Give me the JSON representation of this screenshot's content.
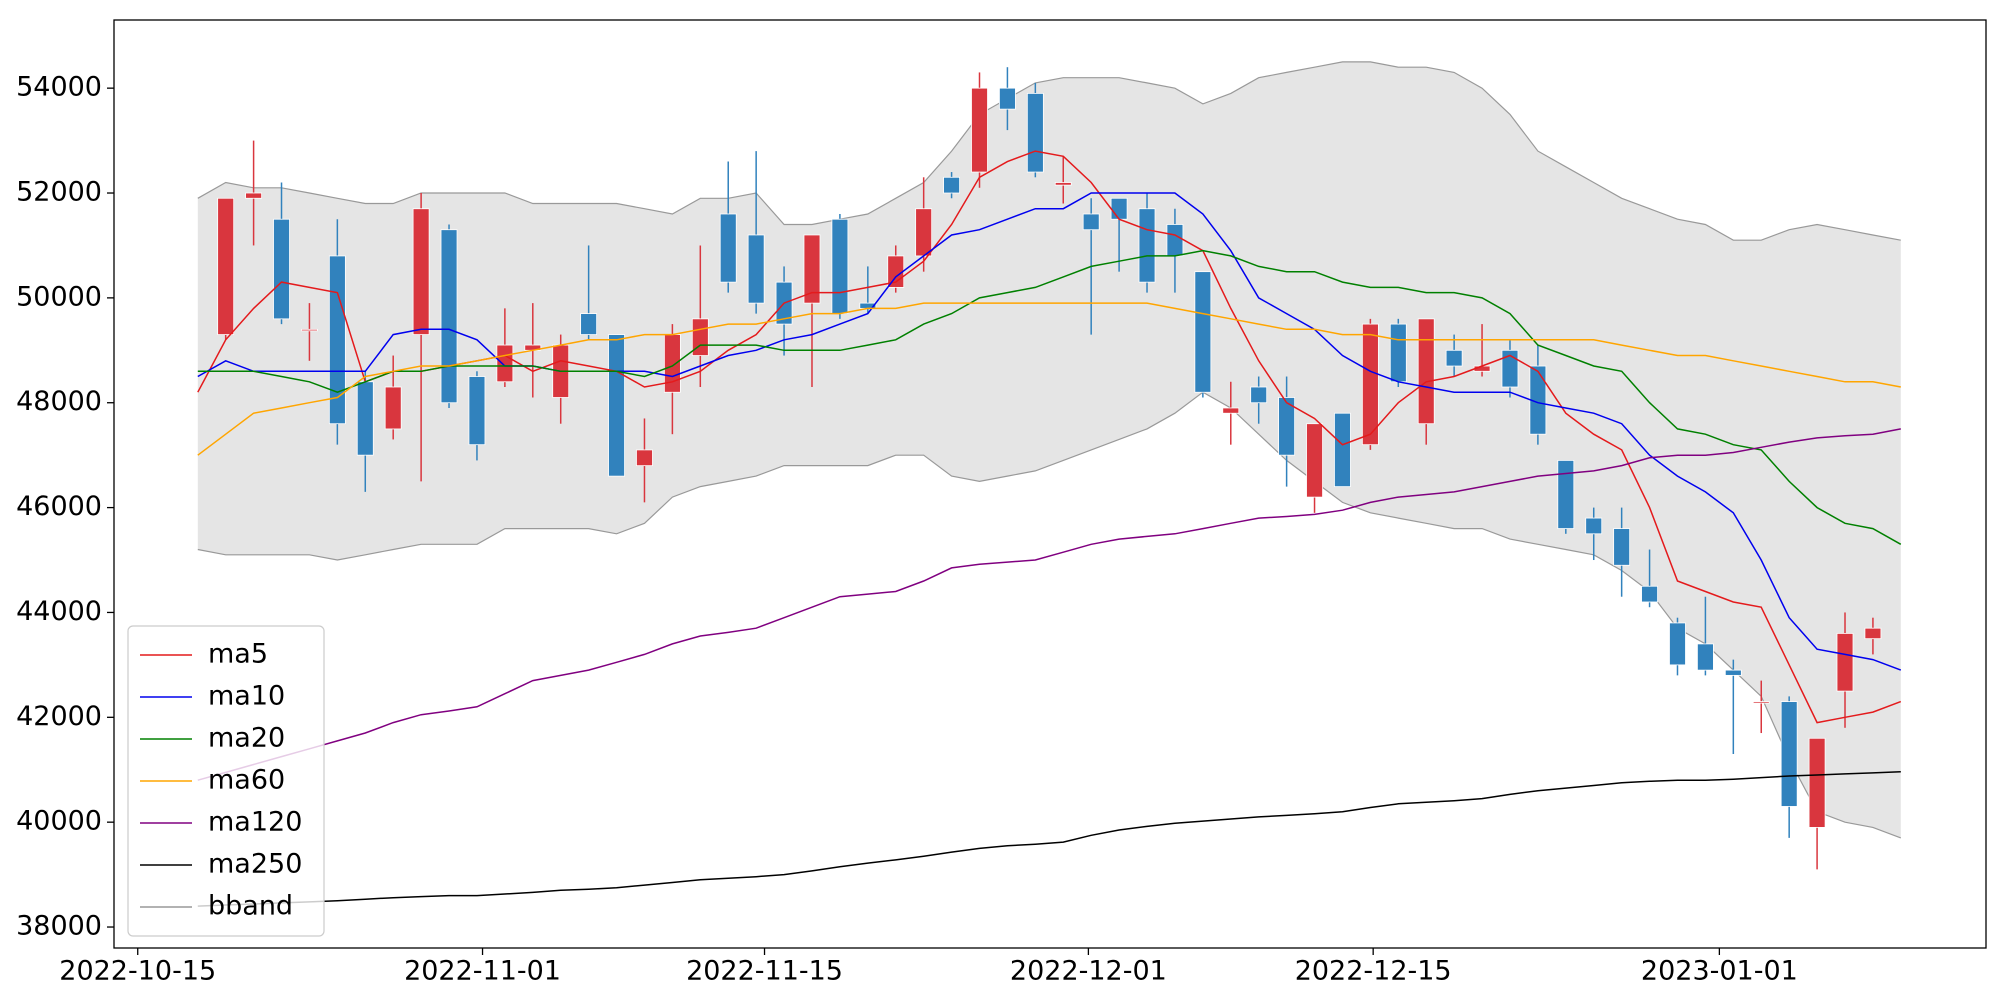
{
  "chart_data": {
    "type": "candlestick",
    "xlim": [
      -3,
      64.05
    ],
    "xticks": [
      {
        "value": -2.15,
        "label": "2022-10-15"
      },
      {
        "value": 10.2,
        "label": "2022-11-01"
      },
      {
        "value": 20.3,
        "label": "2022-11-15"
      },
      {
        "value": 31.9,
        "label": "2022-12-01"
      },
      {
        "value": 42.1,
        "label": "2022-12-15"
      },
      {
        "value": 54.5,
        "label": "2023-01-01"
      }
    ],
    "ylim": [
      37600,
      55300
    ],
    "yticks": [
      38000,
      40000,
      42000,
      44000,
      46000,
      48000,
      50000,
      52000,
      54000
    ],
    "legend": "lower left",
    "up_color": "#d9363e",
    "down_color": "#3182bd",
    "ohlc": {
      "open": [
        null,
        49300,
        51900,
        51500,
        49400,
        50800,
        48400,
        47500,
        49300,
        51300,
        48500,
        48400,
        49000,
        48100,
        49700,
        49300,
        46800,
        48200,
        48900,
        51600,
        51200,
        50300,
        49900,
        51500,
        49900,
        50200,
        50800,
        52300,
        52400,
        54000,
        53900,
        52150,
        51600,
        51900,
        51700,
        51400,
        50500,
        47800,
        48300,
        48100,
        46200,
        47800,
        47200,
        49500,
        47600,
        49000,
        48600,
        49000,
        48700,
        46900,
        45800,
        45600,
        44500,
        43800,
        43400,
        42900,
        42300,
        42300,
        39900,
        42500,
        43500,
        null
      ],
      "high": [
        null,
        51900,
        53000,
        52200,
        49900,
        51500,
        48600,
        48900,
        52000,
        51400,
        48600,
        49800,
        49900,
        49300,
        51000,
        49300,
        47700,
        49500,
        51000,
        52600,
        52800,
        50600,
        51200,
        51600,
        50600,
        51000,
        52300,
        52400,
        54300,
        54400,
        54100,
        52700,
        51900,
        51900,
        52000,
        51700,
        50500,
        48400,
        48500,
        48500,
        47600,
        47800,
        49600,
        49600,
        49600,
        49300,
        49500,
        49200,
        49100,
        46900,
        46000,
        46000,
        45200,
        43900,
        44300,
        43100,
        42700,
        42400,
        41600,
        44000,
        43900,
        null
      ],
      "low": [
        null,
        49200,
        51000,
        49500,
        48800,
        47200,
        46300,
        47300,
        46500,
        47900,
        46900,
        48300,
        48100,
        47600,
        49200,
        46600,
        46100,
        47400,
        48300,
        50100,
        49700,
        48900,
        48300,
        49600,
        49700,
        50100,
        50500,
        51900,
        52100,
        53200,
        52300,
        51800,
        49300,
        50500,
        50100,
        50100,
        48100,
        47200,
        47600,
        46400,
        45900,
        46400,
        47100,
        48300,
        47200,
        48500,
        48500,
        48100,
        47200,
        45500,
        45000,
        44300,
        44100,
        42800,
        42800,
        41300,
        41700,
        39700,
        39100,
        41800,
        43200,
        null
      ],
      "close": [
        null,
        51900,
        52000,
        49600,
        49400,
        47600,
        47000,
        48300,
        51700,
        48000,
        47200,
        49100,
        49100,
        49100,
        49300,
        46600,
        47100,
        49300,
        49600,
        50300,
        49900,
        49500,
        51200,
        49700,
        49800,
        50800,
        51700,
        52000,
        54000,
        53600,
        52400,
        52200,
        51300,
        51500,
        50300,
        50800,
        48200,
        47900,
        48000,
        47000,
        47600,
        46400,
        49500,
        48400,
        49600,
        48700,
        48700,
        48300,
        47400,
        45600,
        45500,
        44900,
        44200,
        43000,
        42900,
        42800,
        42300,
        40300,
        41600,
        43600,
        43700,
        null
      ]
    },
    "bband": {
      "name": "bband",
      "color": "#999999",
      "fill": "#e5e5e5",
      "upper": [
        51900,
        52200,
        52100,
        52100,
        52000,
        51900,
        51800,
        51800,
        52000,
        52000,
        52000,
        52000,
        51800,
        51800,
        51800,
        51800,
        51700,
        51600,
        51900,
        51900,
        52000,
        51400,
        51400,
        51500,
        51600,
        51900,
        52200,
        52800,
        53500,
        53800,
        54100,
        54200,
        54200,
        54200,
        54100,
        54000,
        53700,
        53900,
        54200,
        54300,
        54400,
        54500,
        54500,
        54400,
        54400,
        54300,
        54000,
        53500,
        52800,
        52500,
        52200,
        51900,
        51700,
        51500,
        51400,
        51100,
        51100,
        51300,
        51400,
        51300,
        51200,
        51100
      ],
      "lower": [
        45200,
        45100,
        45100,
        45100,
        45100,
        45000,
        45100,
        45200,
        45300,
        45300,
        45300,
        45600,
        45600,
        45600,
        45600,
        45500,
        45700,
        46200,
        46400,
        46500,
        46600,
        46800,
        46800,
        46800,
        46800,
        47000,
        47000,
        46600,
        46500,
        46600,
        46700,
        46900,
        47100,
        47300,
        47500,
        47800,
        48200,
        47900,
        47400,
        46900,
        46500,
        46100,
        45900,
        45800,
        45700,
        45600,
        45600,
        45400,
        45300,
        45200,
        45100,
        44800,
        44400,
        43700,
        43400,
        42900,
        42400,
        41200,
        40200,
        40000,
        39900,
        39700
      ]
    },
    "series": [
      {
        "name": "ma5",
        "color": "#e41a1c",
        "values": [
          48200,
          49200,
          49800,
          50300,
          50200,
          50100,
          48400,
          48600,
          48600,
          48700,
          48800,
          48900,
          48600,
          48800,
          48700,
          48600,
          48300,
          48400,
          48600,
          49000,
          49300,
          49900,
          50100,
          50100,
          50200,
          50300,
          50700,
          51400,
          52300,
          52600,
          52800,
          52700,
          52200,
          51500,
          51300,
          51200,
          50900,
          49800,
          48800,
          48000,
          47700,
          47200,
          47400,
          48000,
          48400,
          48500,
          48700,
          48900,
          48600,
          47800,
          47400,
          47100,
          46000,
          44600,
          44400,
          44200,
          44100,
          43000,
          41900,
          42000,
          42100,
          42300
        ]
      },
      {
        "name": "ma10",
        "color": "#0000ee",
        "values": [
          48500,
          48800,
          48600,
          48600,
          48600,
          48600,
          48600,
          49300,
          49400,
          49400,
          49200,
          48700,
          48700,
          48600,
          48600,
          48600,
          48600,
          48500,
          48700,
          48900,
          49000,
          49200,
          49300,
          49500,
          49700,
          50400,
          50800,
          51200,
          51300,
          51500,
          51700,
          51700,
          52000,
          52000,
          52000,
          52000,
          51600,
          50900,
          50000,
          49700,
          49400,
          48900,
          48600,
          48400,
          48300,
          48200,
          48200,
          48200,
          48000,
          47900,
          47800,
          47600,
          47000,
          46600,
          46300,
          45900,
          45000,
          43900,
          43300,
          43200,
          43100,
          42900
        ]
      },
      {
        "name": "ma20",
        "color": "#008000",
        "values": [
          48600,
          48600,
          48600,
          48500,
          48400,
          48200,
          48400,
          48600,
          48600,
          48700,
          48700,
          48700,
          48700,
          48600,
          48600,
          48600,
          48500,
          48700,
          49100,
          49100,
          49100,
          49000,
          49000,
          49000,
          49100,
          49200,
          49500,
          49700,
          50000,
          50100,
          50200,
          50400,
          50600,
          50700,
          50800,
          50800,
          50900,
          50800,
          50600,
          50500,
          50500,
          50300,
          50200,
          50200,
          50100,
          50100,
          50000,
          49700,
          49100,
          48900,
          48700,
          48600,
          48000,
          47500,
          47400,
          47200,
          47100,
          46500,
          46000,
          45700,
          45600,
          45300
        ]
      },
      {
        "name": "ma60",
        "color": "#ffa500",
        "values": [
          47000,
          47400,
          47800,
          47900,
          48000,
          48100,
          48500,
          48600,
          48700,
          48700,
          48800,
          48900,
          49000,
          49100,
          49200,
          49200,
          49300,
          49300,
          49400,
          49500,
          49500,
          49600,
          49700,
          49700,
          49800,
          49800,
          49900,
          49900,
          49900,
          49900,
          49900,
          49900,
          49900,
          49900,
          49900,
          49800,
          49700,
          49600,
          49500,
          49400,
          49400,
          49300,
          49300,
          49200,
          49200,
          49200,
          49200,
          49200,
          49200,
          49200,
          49200,
          49100,
          49000,
          48900,
          48900,
          48800,
          48700,
          48600,
          48500,
          48400,
          48400,
          48300
        ]
      },
      {
        "name": "ma120",
        "color": "#800080",
        "values": [
          40800,
          40950,
          41100,
          41250,
          41400,
          41550,
          41700,
          41900,
          42050,
          42120,
          42200,
          42450,
          42700,
          42800,
          42900,
          43050,
          43200,
          43400,
          43550,
          43620,
          43700,
          43900,
          44100,
          44300,
          44350,
          44400,
          44600,
          44850,
          44920,
          44960,
          45000,
          45150,
          45300,
          45400,
          45450,
          45500,
          45600,
          45700,
          45800,
          45830,
          45870,
          45950,
          46100,
          46200,
          46250,
          46300,
          46400,
          46500,
          46600,
          46650,
          46700,
          46800,
          46950,
          47000,
          47000,
          47050,
          47150,
          47250,
          47330,
          47370,
          47400,
          47500
        ]
      },
      {
        "name": "ma250",
        "color": "#000000",
        "values": [
          38400,
          38420,
          38440,
          38460,
          38480,
          38500,
          38530,
          38560,
          38580,
          38600,
          38600,
          38630,
          38660,
          38700,
          38720,
          38750,
          38800,
          38850,
          38900,
          38930,
          38960,
          39000,
          39070,
          39150,
          39220,
          39280,
          39350,
          39430,
          39500,
          39550,
          39580,
          39620,
          39750,
          39850,
          39920,
          39980,
          40020,
          40060,
          40100,
          40130,
          40160,
          40200,
          40280,
          40350,
          40380,
          40410,
          40450,
          40530,
          40600,
          40650,
          40700,
          40750,
          40780,
          40800,
          40800,
          40820,
          40850,
          40880,
          40900,
          40920,
          40940,
          40960
        ]
      }
    ]
  }
}
